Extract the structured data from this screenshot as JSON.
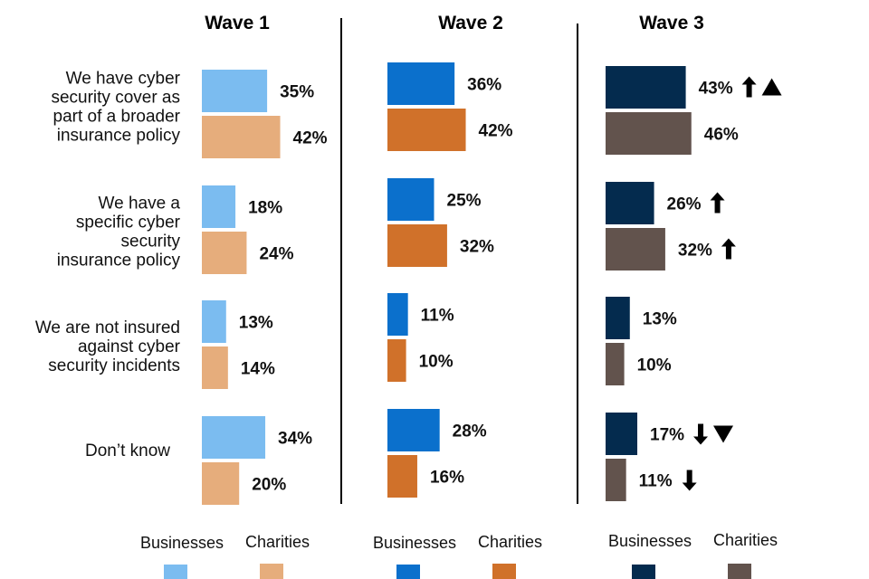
{
  "chart_data": {
    "type": "bar",
    "orientation": "horizontal",
    "title": "",
    "categories": [
      [
        "We have cyber",
        "security cover as",
        "part of a broader",
        "insurance policy"
      ],
      [
        "We have a",
        "specific cyber",
        "security",
        "insurance policy"
      ],
      [
        "We are not insured",
        "against cyber",
        "security incidents"
      ],
      [
        "Don’t know"
      ]
    ],
    "unit": "%",
    "xlim": [
      0,
      100
    ],
    "panels": [
      {
        "title": "Wave 1",
        "colors": {
          "Businesses": "#7bbcf0",
          "Charities": "#e6ad7c"
        },
        "series": [
          {
            "name": "Businesses",
            "values": [
              35,
              18,
              13,
              34
            ],
            "indicators": [
              [],
              [],
              [],
              []
            ]
          },
          {
            "name": "Charities",
            "values": [
              42,
              24,
              14,
              20
            ],
            "indicators": [
              [],
              [],
              [],
              []
            ]
          }
        ]
      },
      {
        "title": "Wave 2",
        "colors": {
          "Businesses": "#0b70cc",
          "Charities": "#d0712a"
        },
        "series": [
          {
            "name": "Businesses",
            "values": [
              36,
              25,
              11,
              28
            ],
            "indicators": [
              [],
              [],
              [],
              []
            ]
          },
          {
            "name": "Charities",
            "values": [
              42,
              32,
              10,
              16
            ],
            "indicators": [
              [],
              [],
              [],
              []
            ]
          }
        ]
      },
      {
        "title": "Wave 3",
        "colors": {
          "Businesses": "#042b4e",
          "Charities": "#62534d"
        },
        "series": [
          {
            "name": "Businesses",
            "values": [
              43,
              26,
              13,
              17
            ],
            "indicators": [
              [
                "arrow-up",
                "triangle-up"
              ],
              [
                "arrow-up"
              ],
              [],
              [
                "arrow-down",
                "triangle-down"
              ]
            ]
          },
          {
            "name": "Charities",
            "values": [
              46,
              32,
              10,
              11
            ],
            "indicators": [
              [],
              [
                "arrow-up"
              ],
              [],
              [
                "arrow-down"
              ]
            ]
          }
        ]
      }
    ],
    "legend": [
      "Businesses",
      "Charities"
    ],
    "legend_position": "bottom"
  }
}
